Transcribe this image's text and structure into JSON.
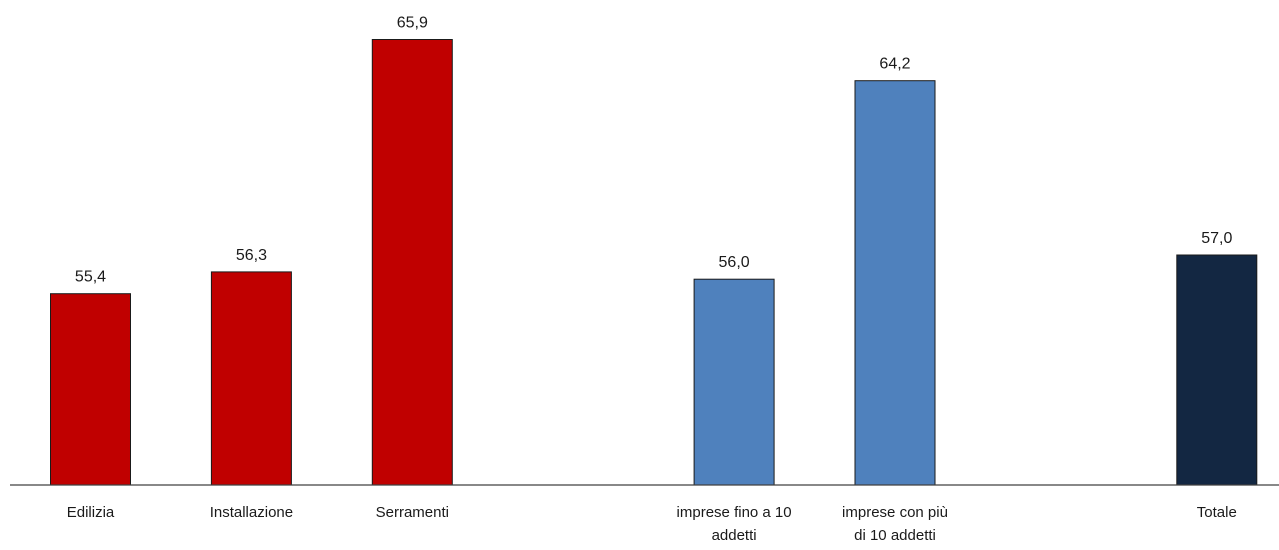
{
  "chart_data": {
    "type": "bar",
    "title": "",
    "xlabel": "",
    "ylabel": "",
    "ylim": [
      47.5,
      66.5
    ],
    "grid": false,
    "legend": "none",
    "bars": [
      {
        "category": "Edilizia",
        "label_lines": [
          "Edilizia"
        ],
        "value": 55.4,
        "value_label": "55,4",
        "color": "#C00000"
      },
      {
        "category": "Installazione",
        "label_lines": [
          "Installazione"
        ],
        "value": 56.3,
        "value_label": "56,3",
        "color": "#C00000"
      },
      {
        "category": "Serramenti",
        "label_lines": [
          "Serramenti"
        ],
        "value": 65.9,
        "value_label": "65,9",
        "color": "#C00000"
      },
      {
        "category": "",
        "label_lines": [],
        "value": null,
        "value_label": "",
        "color": ""
      },
      {
        "category": "imprese fino a 10 addetti",
        "label_lines": [
          "imprese fino a 10",
          "addetti"
        ],
        "value": 56.0,
        "value_label": "56,0",
        "color": "#4F81BD"
      },
      {
        "category": "imprese con più di 10 addetti",
        "label_lines": [
          "imprese con più",
          "di 10 addetti"
        ],
        "value": 64.2,
        "value_label": "64,2",
        "color": "#4F81BD"
      },
      {
        "category": "",
        "label_lines": [],
        "value": null,
        "value_label": "",
        "color": ""
      },
      {
        "category": "Totale",
        "label_lines": [
          "Totale"
        ],
        "value": 57.0,
        "value_label": "57,0",
        "color": "#132742"
      }
    ]
  }
}
